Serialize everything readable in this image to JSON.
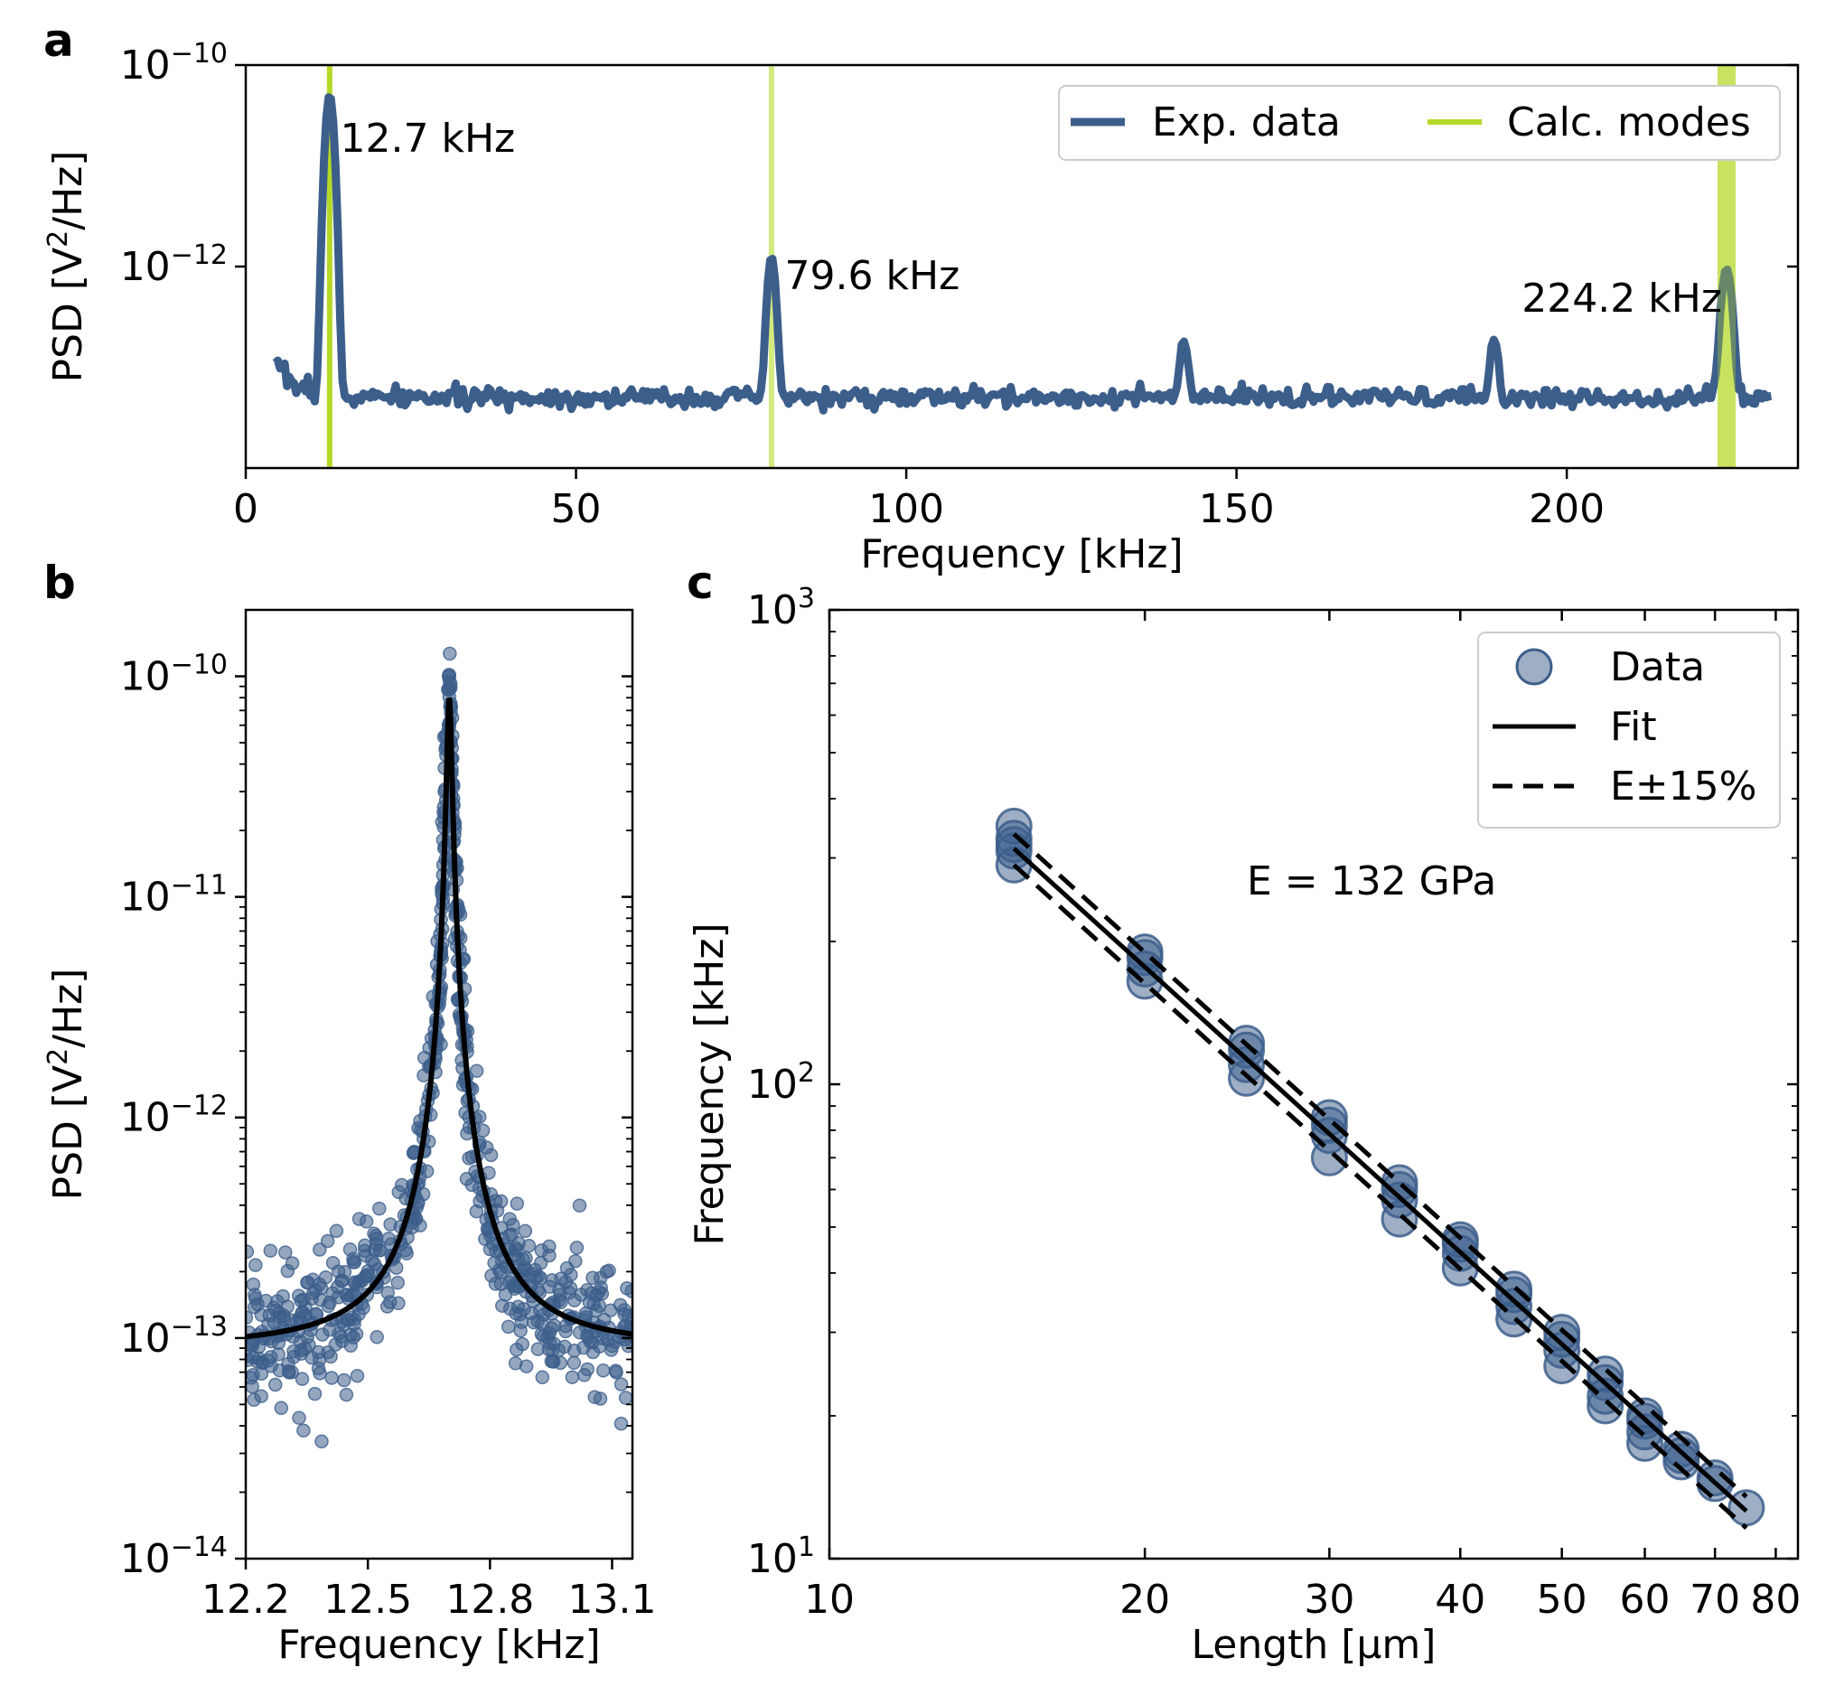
{
  "colors": {
    "data": "#3c5e8b",
    "calc_mode": "#b5d827",
    "calc_mode_light": "#d3ea7d",
    "fit": "#000000"
  },
  "chart_data": [
    {
      "panel": "a",
      "type": "line",
      "xlabel": "Frequency [kHz]",
      "ylabel_main": "PSD [V",
      "ylabel_sup": "2",
      "ylabel_end": "/Hz]",
      "xlim": [
        0,
        235
      ],
      "ylim": [
        1e-14,
        1e-10
      ],
      "yscale": "log",
      "xticks": [
        0,
        50,
        100,
        150,
        200
      ],
      "xtick_labels": [
        "0",
        "50",
        "100",
        "150",
        "200"
      ],
      "yticks": [
        {
          "base": "10",
          "exp": "−10",
          "value": 1e-10
        },
        {
          "base": "10",
          "exp": "−12",
          "value": 1e-12
        }
      ],
      "legend": [
        {
          "label": "Exp. data",
          "kind": "line",
          "color": "#3c5e8b"
        },
        {
          "label": "Calc. modes",
          "kind": "line",
          "color": "#b5d827"
        }
      ],
      "calc_modes_khz": [
        12.7,
        79.6,
        224.2
      ],
      "peaks": [
        {
          "x": 12.7,
          "y": 5e-11,
          "label": "12.7 kHz"
        },
        {
          "x": 79.6,
          "y": 1.2e-12,
          "label": "79.6 kHz"
        },
        {
          "x": 224.2,
          "y": 9e-13,
          "label": "224.2 kHz"
        }
      ],
      "small_peaks": [
        {
          "x": 142,
          "y": 1.3e-13
        },
        {
          "x": 189,
          "y": 1.4e-13
        }
      ],
      "noise_floor": 5e-14
    },
    {
      "panel": "b",
      "type": "scatter",
      "xlabel": "Frequency [kHz]",
      "ylabel_main": "PSD [V",
      "ylabel_sup": "2",
      "ylabel_end": "/Hz]",
      "xlim": [
        12.2,
        13.15
      ],
      "ylim": [
        1e-14,
        2e-10
      ],
      "yscale": "log",
      "xticks": [
        12.2,
        12.5,
        12.8,
        13.1
      ],
      "xtick_labels": [
        "12.2",
        "12.5",
        "12.8",
        "13.1"
      ],
      "yticks": [
        {
          "base": "10",
          "exp": "−10",
          "value": 1e-10
        },
        {
          "base": "10",
          "exp": "−11",
          "value": 1e-11
        },
        {
          "base": "10",
          "exp": "−12",
          "value": 1e-12
        },
        {
          "base": "10",
          "exp": "−13",
          "value": 1e-13
        },
        {
          "base": "10",
          "exp": "−14",
          "value": 1e-14
        }
      ],
      "fit": {
        "f0": 12.7,
        "gamma": 0.006,
        "peak": 8e-11,
        "background": 9e-14
      },
      "scatter_points": 700,
      "scatter_spread_decades": 0.16
    },
    {
      "panel": "c",
      "type": "scatter",
      "xlabel": "Length [µm]",
      "ylabel": "Frequency [kHz]",
      "xscale": "log",
      "yscale": "log",
      "xlim": [
        10,
        84
      ],
      "ylim": [
        10,
        1000
      ],
      "xticks": [
        10,
        20,
        30,
        40,
        50,
        60,
        70,
        80
      ],
      "xtick_labels": [
        "10",
        "20",
        "30",
        "40",
        "50",
        "60",
        "70",
        "80"
      ],
      "yticks": [
        {
          "base": "10",
          "exp": "3",
          "value": 1000
        },
        {
          "base": "10",
          "exp": "2",
          "value": 100
        },
        {
          "base": "10",
          "exp": "1",
          "value": 10
        }
      ],
      "annotation": "E = 132 GPa",
      "legend": [
        {
          "label": "Data",
          "kind": "marker"
        },
        {
          "label": "Fit",
          "kind": "solid"
        },
        {
          "label": "E±15%",
          "kind": "dashed"
        }
      ],
      "fit_line": {
        "x": [
          15,
          75
        ],
        "y": [
          314,
          12.6
        ]
      },
      "fit_upper": {
        "x": [
          15,
          75
        ],
        "y": [
          337,
          13.5
        ]
      },
      "fit_lower": {
        "x": [
          15,
          75
        ],
        "y": [
          290,
          11.6
        ]
      },
      "data_groups": [
        {
          "x": 15,
          "y": [
            330,
            350,
            310,
            290,
            320
          ]
        },
        {
          "x": 20,
          "y": [
            185,
            175,
            165,
            190
          ]
        },
        {
          "x": 25,
          "y": [
            118,
            110,
            103,
            122
          ]
        },
        {
          "x": 30,
          "y": [
            82,
            78,
            70,
            85
          ]
        },
        {
          "x": 35,
          "y": [
            60,
            57,
            52,
            62
          ]
        },
        {
          "x": 40,
          "y": [
            46,
            44,
            41,
            47
          ]
        },
        {
          "x": 45,
          "y": [
            36,
            34,
            32,
            37
          ]
        },
        {
          "x": 50,
          "y": [
            29,
            27.5,
            25.5,
            30
          ]
        },
        {
          "x": 55,
          "y": [
            23.5,
            22,
            21,
            24.5
          ]
        },
        {
          "x": 60,
          "y": [
            19.5,
            18.5,
            17.5,
            20
          ]
        },
        {
          "x": 65,
          "y": [
            17,
            16.5,
            16
          ]
        },
        {
          "x": 70,
          "y": [
            14.8,
            14.4
          ]
        },
        {
          "x": 75,
          "y": [
            12.8
          ]
        }
      ]
    }
  ]
}
